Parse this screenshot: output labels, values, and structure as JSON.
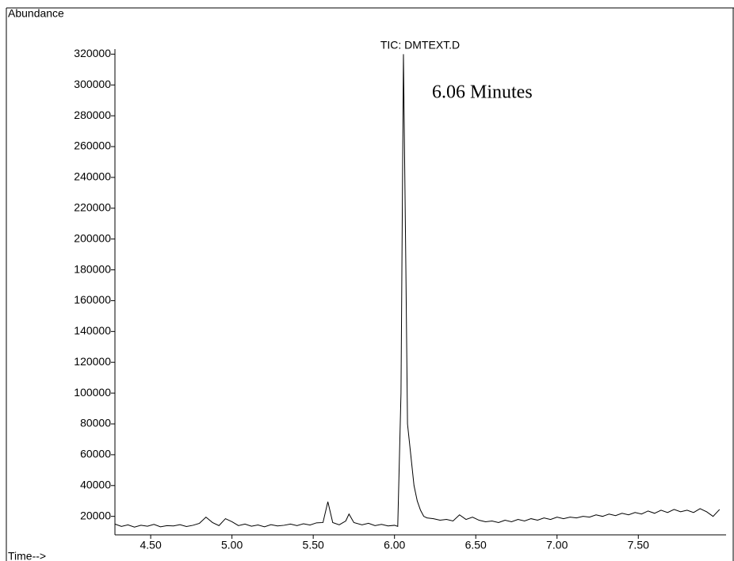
{
  "chart_data": {
    "type": "line",
    "title": "TIC: DMTEXT.D",
    "y_label": "Abundance",
    "x_label": "Time-->",
    "annotation": "6.06 Minutes",
    "color": "#000000",
    "xlim": [
      4.28,
      8.04
    ],
    "ylim": [
      8000,
      350000
    ],
    "xticks": [
      {
        "value": 4.5,
        "label": "4.50"
      },
      {
        "value": 5.0,
        "label": "5.00"
      },
      {
        "value": 5.5,
        "label": "5.50"
      },
      {
        "value": 6.0,
        "label": "6.00"
      },
      {
        "value": 6.5,
        "label": "6.50"
      },
      {
        "value": 7.0,
        "label": "7.00"
      },
      {
        "value": 7.5,
        "label": "7.50"
      }
    ],
    "yticks": [
      20000,
      40000,
      60000,
      80000,
      100000,
      120000,
      140000,
      160000,
      180000,
      200000,
      220000,
      240000,
      260000,
      280000,
      300000,
      320000
    ],
    "x": [
      4.28,
      4.32,
      4.36,
      4.4,
      4.44,
      4.48,
      4.52,
      4.56,
      4.6,
      4.64,
      4.68,
      4.72,
      4.76,
      4.8,
      4.84,
      4.88,
      4.92,
      4.96,
      5.0,
      5.04,
      5.08,
      5.12,
      5.16,
      5.2,
      5.24,
      5.28,
      5.32,
      5.36,
      5.4,
      5.44,
      5.48,
      5.52,
      5.56,
      5.59,
      5.62,
      5.66,
      5.7,
      5.72,
      5.75,
      5.8,
      5.84,
      5.88,
      5.92,
      5.96,
      6.0,
      6.02,
      6.04,
      6.055,
      6.07,
      6.08,
      6.1,
      6.12,
      6.14,
      6.16,
      6.18,
      6.2,
      6.24,
      6.28,
      6.32,
      6.36,
      6.4,
      6.44,
      6.48,
      6.52,
      6.56,
      6.6,
      6.64,
      6.68,
      6.72,
      6.76,
      6.8,
      6.84,
      6.88,
      6.92,
      6.96,
      7.0,
      7.04,
      7.08,
      7.12,
      7.16,
      7.2,
      7.24,
      7.28,
      7.32,
      7.36,
      7.4,
      7.44,
      7.48,
      7.52,
      7.56,
      7.6,
      7.64,
      7.68,
      7.72,
      7.76,
      7.8,
      7.84,
      7.88,
      7.92,
      7.96,
      8.0
    ],
    "values": [
      15000,
      13500,
      14500,
      13000,
      14200,
      13600,
      14800,
      13200,
      14000,
      13800,
      14600,
      13400,
      14200,
      15500,
      19500,
      16000,
      14000,
      18500,
      16500,
      14000,
      15000,
      13600,
      14400,
      13200,
      14600,
      13800,
      14200,
      15000,
      14000,
      15200,
      14400,
      15800,
      16000,
      29500,
      16000,
      14500,
      17000,
      21500,
      16000,
      14500,
      15500,
      14000,
      14800,
      13800,
      14200,
      13500,
      100000,
      320000,
      180000,
      80000,
      60000,
      40000,
      30000,
      24000,
      20000,
      19000,
      18500,
      17500,
      18000,
      17000,
      21000,
      18000,
      19500,
      17500,
      16500,
      17000,
      16000,
      17500,
      16500,
      18000,
      17000,
      18500,
      17500,
      19000,
      18000,
      19500,
      18500,
      19500,
      19000,
      20000,
      19500,
      21000,
      20000,
      21500,
      20500,
      22000,
      21000,
      22500,
      21500,
      23500,
      22000,
      24000,
      22500,
      24500,
      23000,
      24000,
      22500,
      25000,
      23000,
      20000,
      24500
    ]
  }
}
